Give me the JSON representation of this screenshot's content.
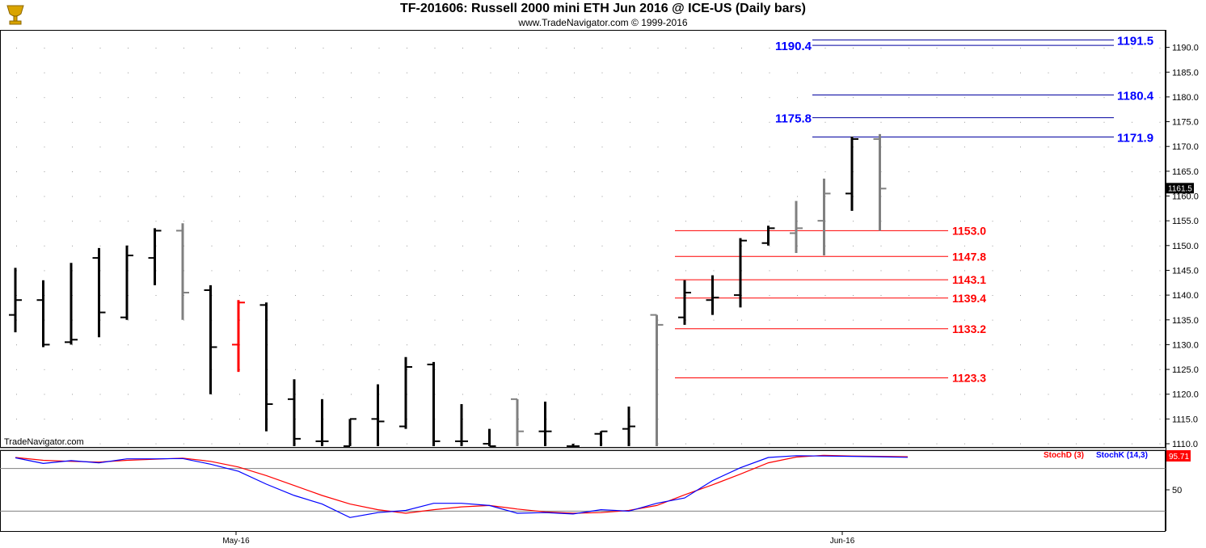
{
  "header": {
    "title": "TF-201606:  Russell 2000 mini ETH Jun 2016 @ ICE-US  (Daily bars)",
    "subtitle": "www.TradeNavigator.com © 1999-2016"
  },
  "watermark": "TradeNavigator.com",
  "logo_icon": "trophy-icon",
  "colors": {
    "up_bar": "#000000",
    "down_bar": "#808080",
    "highlight_bar": "#ff0000",
    "support_line": "#ff0000",
    "target_line": "#0000a0",
    "target_label": "#0000ff",
    "stoch_d": "#ff0000",
    "stoch_k": "#0000ff"
  },
  "chart_data": [
    {
      "type": "ohlc",
      "title": "TF-201606:  Russell 2000 mini ETH Jun 2016 @ ICE-US  (Daily bars)",
      "x_labels": [
        "May-16",
        "Jun-16"
      ],
      "ylim": [
        1108.5,
        1197.0
      ],
      "y_ticks": [
        1110.0,
        1115.0,
        1120.0,
        1125.0,
        1130.0,
        1135.0,
        1140.0,
        1145.0,
        1150.0,
        1155.0,
        1160.0,
        1165.0,
        1170.0,
        1175.0,
        1180.0,
        1185.0,
        1190.0
      ],
      "last_price": "1161.5",
      "bars": [
        {
          "o": 1136.0,
          "h": 1145.5,
          "l": 1132.5,
          "c": 1139.0,
          "color": "black"
        },
        {
          "o": 1139.0,
          "h": 1143.0,
          "l": 1129.5,
          "c": 1130.0,
          "color": "black"
        },
        {
          "o": 1130.5,
          "h": 1146.5,
          "l": 1130.0,
          "c": 1131.0,
          "color": "black"
        },
        {
          "o": 1147.5,
          "h": 1149.5,
          "l": 1131.5,
          "c": 1136.5,
          "color": "black"
        },
        {
          "o": 1135.5,
          "h": 1150.0,
          "l": 1135.0,
          "c": 1148.0,
          "color": "black"
        },
        {
          "o": 1147.5,
          "h": 1153.5,
          "l": 1142.0,
          "c": 1153.0,
          "color": "black"
        },
        {
          "o": 1153.0,
          "h": 1154.5,
          "l": 1135.0,
          "c": 1140.5,
          "color": "gray"
        },
        {
          "o": 1141.0,
          "h": 1142.0,
          "l": 1120.0,
          "c": 1129.5,
          "color": "black"
        },
        {
          "o": 1130.0,
          "h": 1139.0,
          "l": 1124.5,
          "c": 1138.5,
          "color": "red"
        },
        {
          "o": 1138.0,
          "h": 1138.5,
          "l": 1112.5,
          "c": 1118.0,
          "color": "black"
        },
        {
          "o": 1119.0,
          "h": 1123.0,
          "l": 1108.5,
          "c": 1111.0,
          "color": "black"
        },
        {
          "o": 1110.5,
          "h": 1119.0,
          "l": 1108.5,
          "c": 1110.5,
          "color": "black"
        },
        {
          "o": 1109.5,
          "h": 1115.0,
          "l": 1108.5,
          "c": 1115.0,
          "color": "black"
        },
        {
          "o": 1115.0,
          "h": 1122.0,
          "l": 1108.5,
          "c": 1114.5,
          "color": "black"
        },
        {
          "o": 1113.5,
          "h": 1127.5,
          "l": 1113.0,
          "c": 1125.5,
          "color": "black"
        },
        {
          "o": 1126.0,
          "h": 1126.5,
          "l": 1108.5,
          "c": 1110.5,
          "color": "black"
        },
        {
          "o": 1110.5,
          "h": 1118.0,
          "l": 1108.5,
          "c": 1110.5,
          "color": "black"
        },
        {
          "o": 1110.0,
          "h": 1113.0,
          "l": 1108.5,
          "c": 1109.5,
          "color": "black"
        },
        {
          "o": 1119.0,
          "h": 1119.0,
          "l": 1108.5,
          "c": 1112.5,
          "color": "gray"
        },
        {
          "o": 1112.5,
          "h": 1118.5,
          "l": 1108.5,
          "c": 1112.5,
          "color": "black"
        },
        {
          "o": 1109.5,
          "h": 1110.0,
          "l": 1108.5,
          "c": 1109.5,
          "color": "black"
        },
        {
          "o": 1112.0,
          "h": 1112.5,
          "l": 1108.5,
          "c": 1112.5,
          "color": "black"
        },
        {
          "o": 1113.0,
          "h": 1117.5,
          "l": 1108.5,
          "c": 1113.5,
          "color": "black"
        },
        {
          "o": 1136.0,
          "h": 1136.0,
          "l": 1108.5,
          "c": 1134.0,
          "color": "gray"
        },
        {
          "o": 1135.5,
          "h": 1143.0,
          "l": 1134.0,
          "c": 1140.5,
          "color": "black"
        },
        {
          "o": 1139.0,
          "h": 1144.0,
          "l": 1136.0,
          "c": 1139.5,
          "color": "black"
        },
        {
          "o": 1140.0,
          "h": 1151.5,
          "l": 1137.5,
          "c": 1151.0,
          "color": "black"
        },
        {
          "o": 1150.5,
          "h": 1154.0,
          "l": 1150.0,
          "c": 1153.5,
          "color": "black"
        },
        {
          "o": 1152.5,
          "h": 1159.0,
          "l": 1148.5,
          "c": 1153.5,
          "color": "gray"
        },
        {
          "o": 1155.0,
          "h": 1163.5,
          "l": 1148.0,
          "c": 1160.5,
          "color": "gray"
        },
        {
          "o": 1160.5,
          "h": 1172.0,
          "l": 1157.0,
          "c": 1171.5,
          "color": "black"
        },
        {
          "o": 1171.5,
          "h": 1172.5,
          "l": 1153.0,
          "c": 1161.5,
          "color": "gray"
        }
      ],
      "support_levels": [
        "1153.0",
        "1147.8",
        "1143.1",
        "1139.4",
        "1133.2",
        "1123.3"
      ],
      "target_levels_right": [
        "1191.5",
        "1180.4",
        "1171.9"
      ],
      "target_levels_left": [
        "1190.4",
        "1175.8"
      ]
    },
    {
      "type": "line",
      "legend": [
        "StochD (3)",
        "StochK (14,3)"
      ],
      "y_ticks": [
        "50"
      ],
      "last_value": "95.71",
      "ylim": [
        0,
        100
      ],
      "series": [
        {
          "name": "StochD (3)",
          "values": [
            95.5,
            91.5,
            90.0,
            89.0,
            91.5,
            93.0,
            94.5,
            90.0,
            82.0,
            70.0,
            56.0,
            42.0,
            30.0,
            22.0,
            17.0,
            22.0,
            26.0,
            28.0,
            23.0,
            19.0,
            17.0,
            18.0,
            21.0,
            28.0,
            43.0,
            57.0,
            72.0,
            88.0,
            96.0,
            98.5,
            97.5,
            97.0,
            96.5
          ]
        },
        {
          "name": "StochK (14,3)",
          "values": [
            95.0,
            87.0,
            91.0,
            88.0,
            93.5,
            93.5,
            94.0,
            86.0,
            76.0,
            58.0,
            42.0,
            30.0,
            11.0,
            18.0,
            21.0,
            31.0,
            31.0,
            28.0,
            17.0,
            18.0,
            16.0,
            22.0,
            20.0,
            31.0,
            38.5,
            63.0,
            81.0,
            95.5,
            98.0,
            97.5,
            97.0,
            96.5,
            95.7
          ]
        }
      ]
    }
  ]
}
